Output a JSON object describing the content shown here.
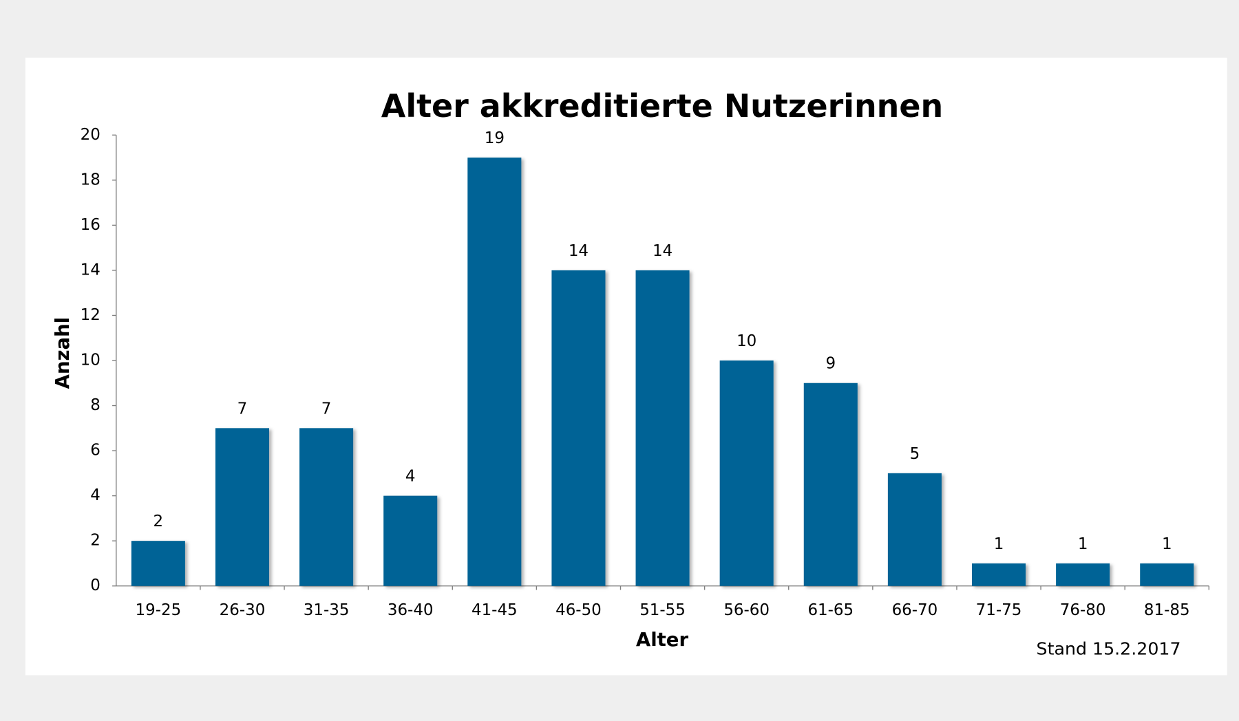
{
  "chart_data": {
    "type": "bar",
    "title": "Alter akkreditierte Nutzerinnen",
    "x_label": "Alter",
    "y_label": "Anzahl",
    "annotation": "Stand 15.2.2017",
    "categories": [
      "19-25",
      "26-30",
      "31-35",
      "36-40",
      "41-45",
      "46-50",
      "51-55",
      "56-60",
      "61-65",
      "66-70",
      "71-75",
      "76-80",
      "81-85"
    ],
    "values": [
      2,
      7,
      7,
      4,
      19,
      14,
      14,
      10,
      9,
      5,
      1,
      1,
      1
    ],
    "color": "#006496",
    "ylim": [
      0,
      20
    ],
    "yticks": [
      0,
      2,
      4,
      6,
      8,
      10,
      12,
      14,
      16,
      18,
      20
    ],
    "grid": false
  }
}
